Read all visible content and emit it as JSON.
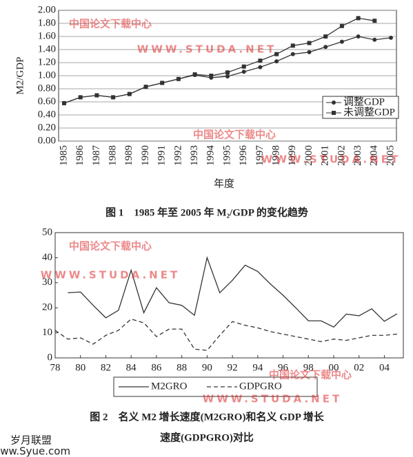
{
  "chart_data": [
    {
      "type": "line",
      "y_label": "M2/GDP",
      "x_label": "年度",
      "caption": [
        "图 1　1985 年至 2005 年 M₂/GDP 的变化趋势"
      ],
      "categories": [
        "1985",
        "1986",
        "1987",
        "1988",
        "1989",
        "1990",
        "1991",
        "1992",
        "1993",
        "1994",
        "1995",
        "1996",
        "1997",
        "1998",
        "1999",
        "2000",
        "2001",
        "2002",
        "2003",
        "2004",
        "2005"
      ],
      "series": [
        {
          "name": "调整GDP",
          "color": "#333333",
          "marker": "circle",
          "line_style": "solid",
          "values": [
            0.58,
            0.67,
            0.7,
            0.67,
            0.72,
            0.83,
            0.89,
            0.95,
            1.01,
            0.97,
            0.99,
            1.06,
            1.13,
            1.22,
            1.33,
            1.36,
            1.44,
            1.52,
            1.6,
            1.55,
            1.58
          ]
        },
        {
          "name": "未调整GDP",
          "color": "#333333",
          "marker": "square",
          "line_style": "solid",
          "values": [
            0.58,
            0.67,
            0.7,
            0.67,
            0.72,
            0.83,
            0.89,
            0.95,
            1.02,
            1.0,
            1.05,
            1.14,
            1.23,
            1.33,
            1.46,
            1.5,
            1.6,
            1.76,
            1.88,
            1.84,
            null
          ]
        }
      ],
      "ylim": [
        0,
        2
      ],
      "yticks": [
        {
          "value": 0,
          "label": "0.00"
        },
        {
          "value": 0.2,
          "label": "0.20"
        },
        {
          "value": 0.4,
          "label": "0.40"
        },
        {
          "value": 0.6,
          "label": "0.60"
        },
        {
          "value": 0.8,
          "label": "0.80"
        },
        {
          "value": 1,
          "label": "1.00"
        },
        {
          "value": 1.2,
          "label": "1.20"
        },
        {
          "value": 1.4,
          "label": "1.40"
        },
        {
          "value": 1.6,
          "label": "1.60"
        },
        {
          "value": 1.8,
          "label": "1.80"
        },
        {
          "value": 2,
          "label": "2.00"
        }
      ],
      "grid": true,
      "legend": "right"
    },
    {
      "type": "line",
      "caption": [
        "图 2　名义 M2 增长速度(M2GRO)和名义 GDP 增长",
        "速度(GDPGRO)对比"
      ],
      "x": [
        1978,
        1979,
        1980,
        1981,
        1982,
        1983,
        1984,
        1985,
        1986,
        1987,
        1988,
        1989,
        1990,
        1991,
        1992,
        1993,
        1994,
        1995,
        1996,
        1997,
        1998,
        1999,
        2000,
        2001,
        2002,
        2003,
        2004,
        2005
      ],
      "series": [
        {
          "name": "M2GRO",
          "color": "#333333",
          "line_style": "solid",
          "values": [
            null,
            26,
            26.3,
            21,
            16,
            19,
            35,
            18,
            28,
            22,
            21,
            17,
            40,
            26,
            31,
            37,
            34.5,
            29.5,
            25,
            20,
            14.8,
            14.8,
            12.3,
            17.5,
            16.8,
            19.6,
            14.6,
            17.6
          ]
        },
        {
          "name": "GDPGRO",
          "color": "#333333",
          "line_style": "dashed",
          "values": [
            11,
            7.5,
            8,
            5.5,
            9,
            11,
            15.5,
            14,
            8.5,
            11.5,
            11.5,
            3.5,
            3,
            9,
            14.5,
            13,
            12,
            10.5,
            9.5,
            8.5,
            7.5,
            6.5,
            7.5,
            7,
            8,
            9,
            9,
            9.5
          ]
        }
      ],
      "xlim": [
        1978,
        2005.5
      ],
      "xticks": [
        {
          "value": 1978,
          "label": "78"
        },
        {
          "value": 1980,
          "label": "80"
        },
        {
          "value": 1982,
          "label": "82"
        },
        {
          "value": 1984,
          "label": "84"
        },
        {
          "value": 1986,
          "label": "86"
        },
        {
          "value": 1988,
          "label": "88"
        },
        {
          "value": 1990,
          "label": "90"
        },
        {
          "value": 1992,
          "label": "92"
        },
        {
          "value": 1994,
          "label": "94"
        },
        {
          "value": 1996,
          "label": "96"
        },
        {
          "value": 1998,
          "label": "98"
        },
        {
          "value": 2000,
          "label": "00"
        },
        {
          "value": 2002,
          "label": "02"
        },
        {
          "value": 2004,
          "label": "04"
        }
      ],
      "ylim": [
        0,
        50
      ],
      "yticks": [
        0,
        10,
        20,
        30,
        40,
        50
      ],
      "grid": false,
      "legend": "bottom"
    }
  ],
  "watermarks": [
    "中国论文下载中心",
    "WWW.STUDA.NET",
    "中国论文下载中心",
    "WWW.STUDA.NET",
    "中国论文下载中心",
    "WWW.STUDA.NET",
    "中国论文下载中心",
    "WWW.STUDA.NET",
    "岁月联盟",
    "www.Syue.com"
  ]
}
